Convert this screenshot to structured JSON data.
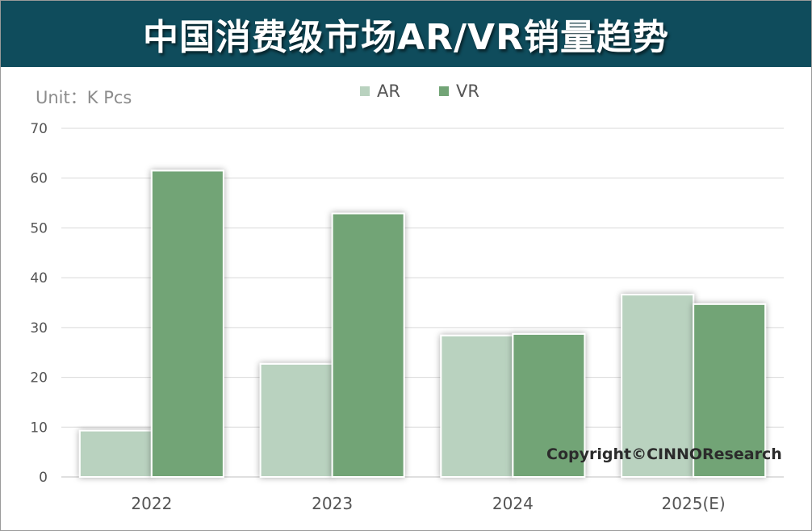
{
  "header": {
    "title": "中国消费级市场AR/VR销量趋势"
  },
  "unit": "Unit：K Pcs",
  "copyright": "Copyright©CINNOResearch",
  "colors": {
    "banner": "#0f4c5c",
    "AR": "#b9d2bf",
    "VR": "#72a476",
    "grid": "#d9d9d9"
  },
  "chart_data": {
    "type": "bar",
    "title": "中国消费级市场AR/VR销量趋势",
    "xlabel": "",
    "ylabel": "",
    "categories": [
      "2022",
      "2023",
      "2024",
      "2025(E)"
    ],
    "series": [
      {
        "name": "AR",
        "values": [
          9.3,
          22.7,
          28.4,
          36.6
        ]
      },
      {
        "name": "VR",
        "values": [
          61.5,
          52.9,
          28.7,
          34.7
        ]
      }
    ],
    "ylim": [
      0,
      70
    ],
    "yticks": [
      "0",
      "10",
      "20",
      "30",
      "40",
      "50",
      "60",
      "70"
    ],
    "grid": true,
    "legend": "top-center"
  }
}
